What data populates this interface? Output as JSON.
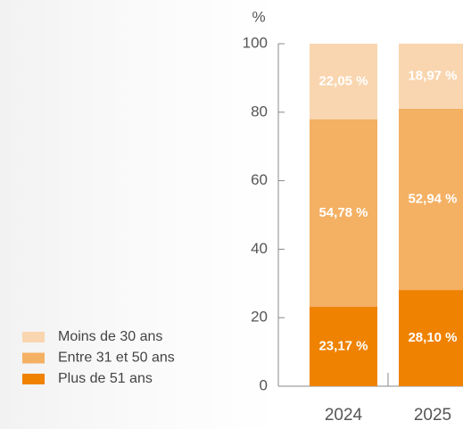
{
  "chart_data": {
    "type": "stacked_bar",
    "y_label": "%",
    "categories": [
      "2024",
      "2025"
    ],
    "series": [
      {
        "name": "Plus de 51 ans",
        "color": "#ef8200",
        "values": [
          23.17,
          28.1
        ],
        "value_labels": [
          "23,17 %",
          "28,10 %"
        ]
      },
      {
        "name": "Entre 31 et 50 ans",
        "color": "#f4b063",
        "values": [
          54.78,
          52.94
        ],
        "value_labels": [
          "54,78 %",
          "52,94 %"
        ]
      },
      {
        "name": "Moins de 30 ans",
        "color": "#f9d6b0",
        "values": [
          22.05,
          18.97
        ],
        "value_labels": [
          "22,05 %",
          "18,97 %"
        ]
      }
    ],
    "ylim": [
      0,
      100
    ],
    "yticks": [
      0,
      20,
      40,
      60,
      80,
      100
    ]
  }
}
